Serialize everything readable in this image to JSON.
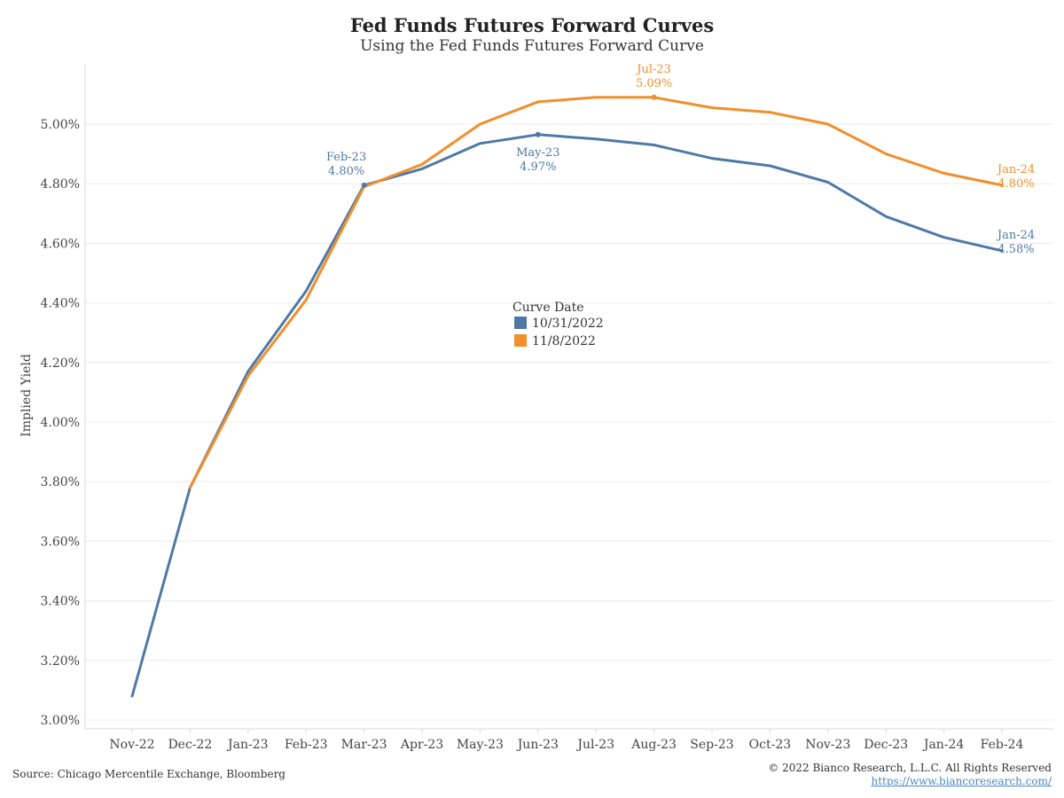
{
  "chart_data": {
    "type": "line",
    "title": "Fed Funds Futures Forward Curves",
    "subtitle": "Using the Fed Funds Futures Forward Curve",
    "ylabel": "Implied Yield",
    "xlabel": "",
    "ylim": [
      3.0,
      5.2
    ],
    "y_ticks": [
      "3.00%",
      "3.20%",
      "3.40%",
      "3.60%",
      "3.80%",
      "4.00%",
      "4.20%",
      "4.40%",
      "4.60%",
      "4.80%",
      "5.00%"
    ],
    "y_tick_values": [
      3.0,
      3.2,
      3.4,
      3.6,
      3.8,
      4.0,
      4.2,
      4.4,
      4.6,
      4.8,
      5.0
    ],
    "categories": [
      "Nov-22",
      "Dec-22",
      "Jan-23",
      "Feb-23",
      "Mar-23",
      "Apr-23",
      "May-23",
      "Jun-23",
      "Jul-23",
      "Aug-23",
      "Sep-23",
      "Oct-23",
      "Nov-23",
      "Dec-23",
      "Jan-24",
      "Feb-24"
    ],
    "grid": "horizontal",
    "legend_title": "Curve Date",
    "legend_position": "center",
    "series": [
      {
        "name": "10/31/2022",
        "color": "#4e79a7",
        "values": [
          3.08,
          3.78,
          4.17,
          4.44,
          4.795,
          4.85,
          4.935,
          4.965,
          4.95,
          4.93,
          4.885,
          4.86,
          4.805,
          4.69,
          4.62,
          4.575
        ]
      },
      {
        "name": "11/8/2022",
        "color": "#f28e2b",
        "values": [
          null,
          3.78,
          4.155,
          4.41,
          4.79,
          4.865,
          5.0,
          5.075,
          5.09,
          5.09,
          5.055,
          5.04,
          5.0,
          4.9,
          4.835,
          4.795
        ]
      }
    ],
    "annotations": [
      {
        "series": 0,
        "index": 4,
        "label": "Feb-23",
        "value_label": "4.80%",
        "marker": true
      },
      {
        "series": 0,
        "index": 7,
        "label": "May-23",
        "value_label": "4.97%",
        "marker": true
      },
      {
        "series": 0,
        "index": 15,
        "label": "Jan-24",
        "value_label": "4.58%",
        "marker": false
      },
      {
        "series": 1,
        "index": 9,
        "label": "Jul-23",
        "value_label": "5.09%",
        "marker": true
      },
      {
        "series": 1,
        "index": 15,
        "label": "Jan-24",
        "value_label": "4.80%",
        "marker": false
      }
    ]
  },
  "footer": {
    "source": "Source: Chicago Mercentile Exchange, Bloomberg",
    "copyright": "© 2022 Bianco Research, L.L.C. All Rights Reserved",
    "url": "https://www.biancoresearch.com/"
  }
}
